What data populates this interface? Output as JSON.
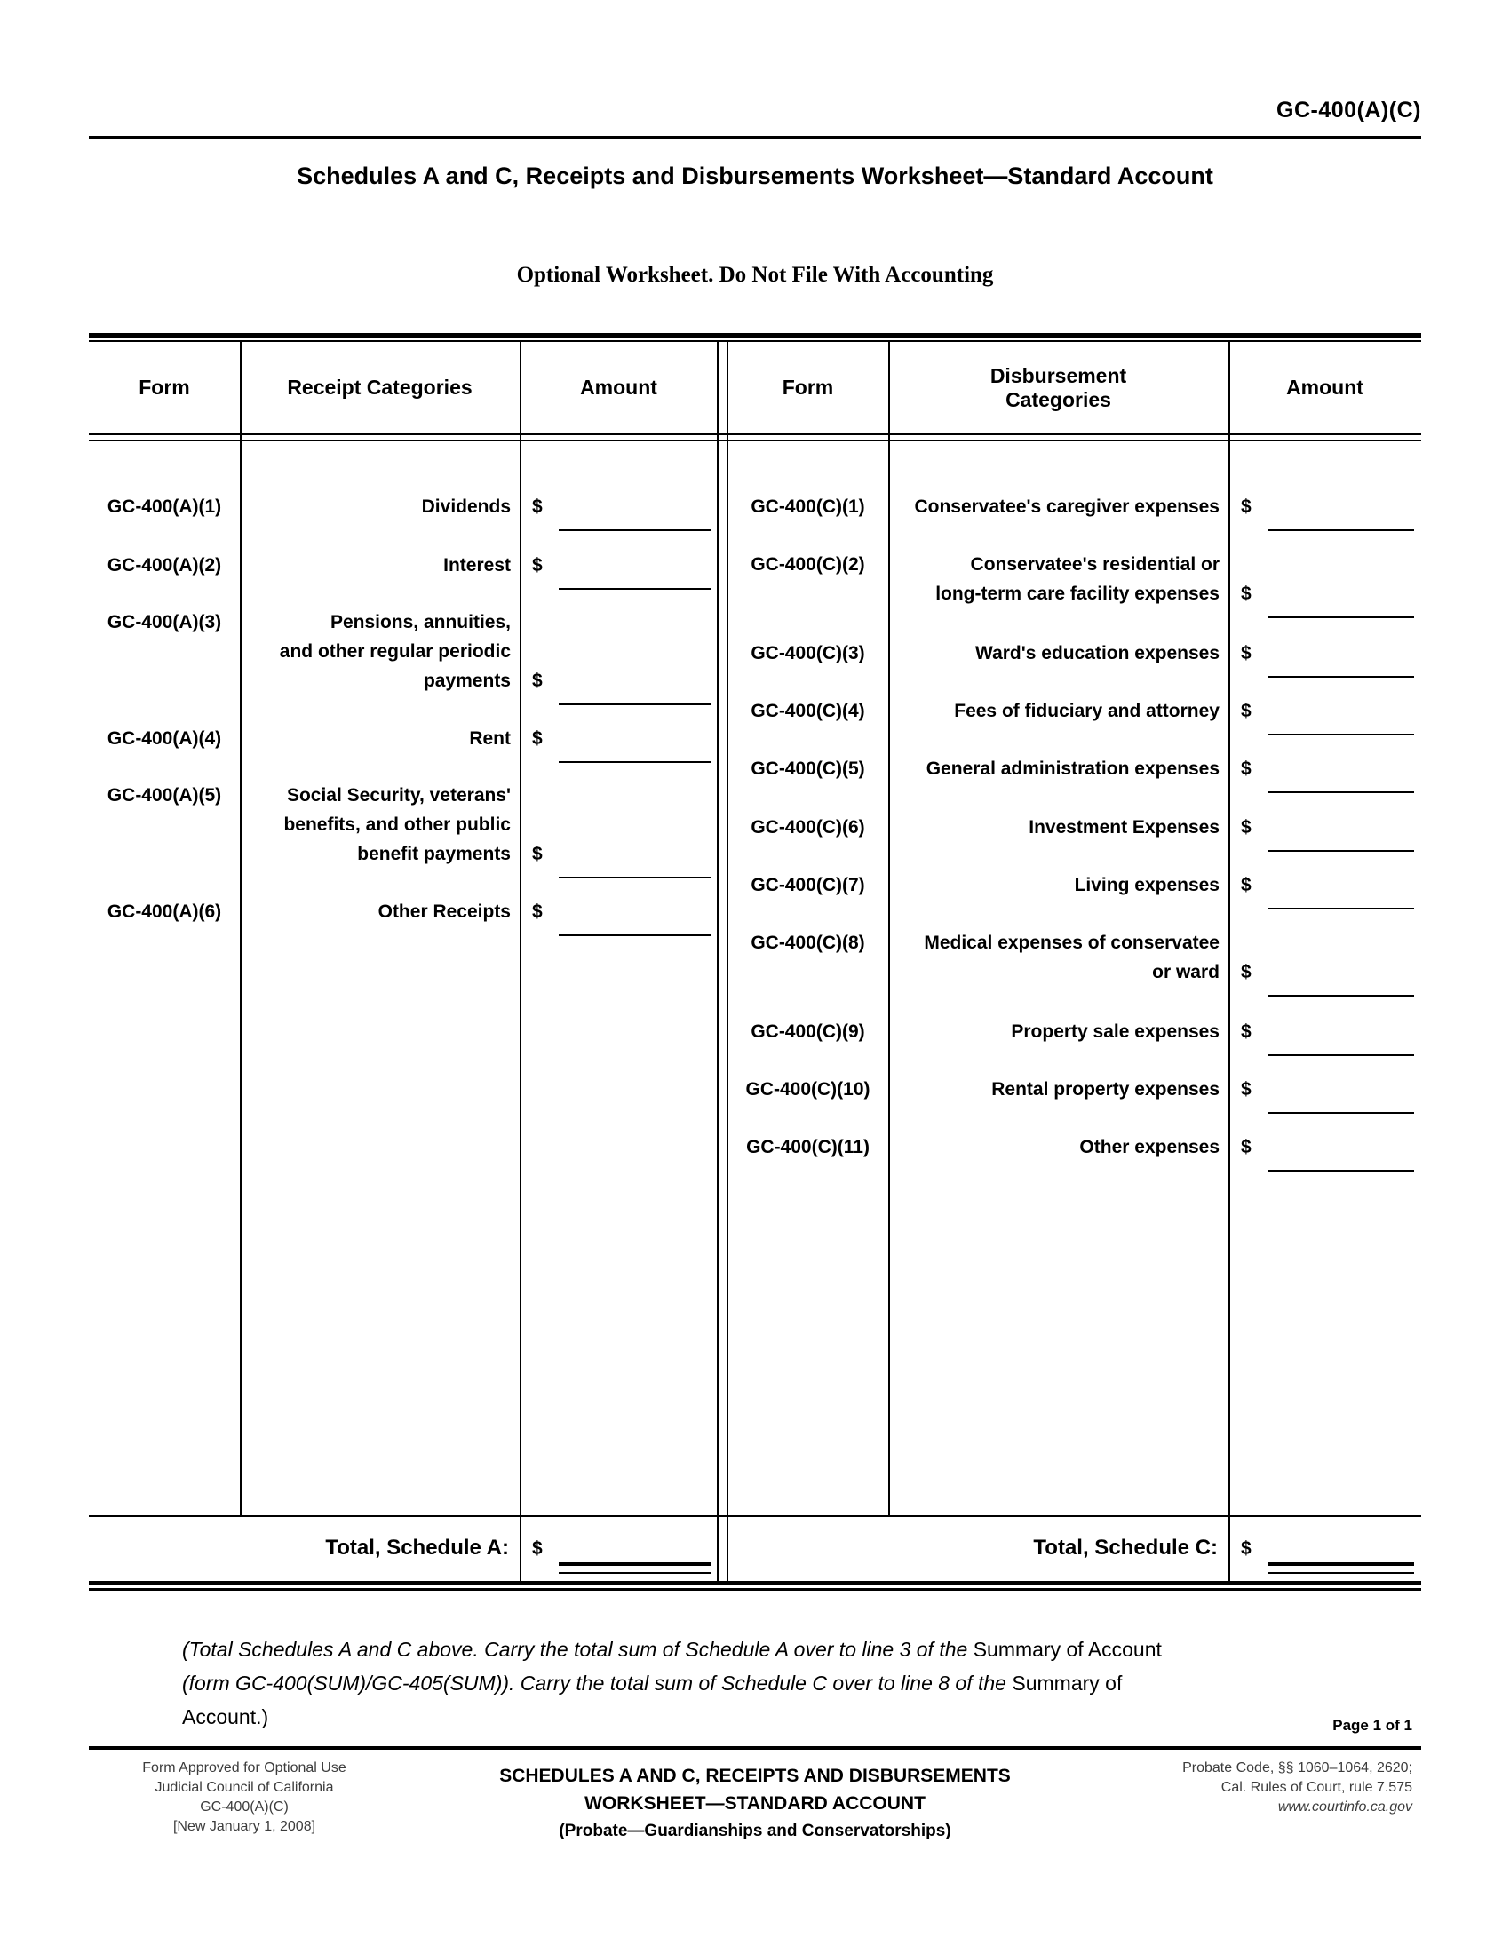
{
  "header": {
    "form_number": "GC-400(A)(C)",
    "title": "Schedules A and C, Receipts and Disbursements Worksheet—Standard Account",
    "subtitle": "Optional Worksheet.  Do Not File With Accounting"
  },
  "table": {
    "currency_symbol": "$",
    "left": {
      "headers": [
        "Form",
        "Receipt Categories",
        "Amount"
      ],
      "rows": [
        {
          "form": "GC-400(A)(1)",
          "category_lines": [
            "Dividends"
          ]
        },
        {
          "form": "GC-400(A)(2)",
          "category_lines": [
            "Interest"
          ]
        },
        {
          "form": "GC-400(A)(3)",
          "category_lines": [
            "Pensions, annuities,",
            "and other regular periodic",
            "payments"
          ]
        },
        {
          "form": "GC-400(A)(4)",
          "category_lines": [
            "Rent"
          ]
        },
        {
          "form": "GC-400(A)(5)",
          "category_lines": [
            "Social Security, veterans'",
            "benefits, and other public",
            "benefit payments"
          ]
        },
        {
          "form": "GC-400(A)(6)",
          "category_lines": [
            "Other Receipts"
          ]
        }
      ],
      "total_label": "Total, Schedule A:"
    },
    "right": {
      "headers": [
        "Form",
        "Disbursement Categories",
        "Amount"
      ],
      "rows": [
        {
          "form": "GC-400(C)(1)",
          "category_lines": [
            "Conservatee's caregiver expenses"
          ]
        },
        {
          "form": "GC-400(C)(2)",
          "category_lines": [
            "Conservatee's residential or",
            "long-term care facility expenses"
          ]
        },
        {
          "form": "GC-400(C)(3)",
          "category_lines": [
            "Ward's education expenses"
          ]
        },
        {
          "form": "GC-400(C)(4)",
          "category_lines": [
            "Fees of fiduciary and attorney"
          ]
        },
        {
          "form": "GC-400(C)(5)",
          "category_lines": [
            "General administration expenses"
          ]
        },
        {
          "form": "GC-400(C)(6)",
          "category_lines": [
            "Investment Expenses"
          ]
        },
        {
          "form": "GC-400(C)(7)",
          "category_lines": [
            "Living expenses"
          ]
        },
        {
          "form": "GC-400(C)(8)",
          "category_lines": [
            "Medical expenses of conservatee",
            "or ward"
          ]
        },
        {
          "form": "GC-400(C)(9)",
          "category_lines": [
            "Property sale expenses"
          ]
        },
        {
          "form": "GC-400(C)(10)",
          "category_lines": [
            "Rental property expenses"
          ]
        },
        {
          "form": "GC-400(C)(11)",
          "category_lines": [
            "Other expenses"
          ]
        }
      ],
      "total_label": "Total, Schedule C:"
    }
  },
  "note_segments": [
    {
      "text": "(Total Schedules A and C above. Carry the total sum of Schedule A over to line 3 of the ",
      "italic": true
    },
    {
      "text": "Summary of Account ",
      "italic": false
    },
    {
      "text": "(form GC-400(SUM)/GC-405(SUM)).  Carry the total sum of Schedule C over to line 8 of the ",
      "italic": true
    },
    {
      "text": "Summary of Account.)",
      "italic": false
    }
  ],
  "page_label": "Page 1 of 1",
  "footer": {
    "left_lines": [
      "Form Approved for Optional Use",
      "Judicial Council of California",
      "GC-400(A)(C)",
      "[New January 1, 2008]"
    ],
    "center_title_lines": [
      "SCHEDULES A AND C, RECEIPTS AND DISBURSEMENTS",
      "WORKSHEET—STANDARD ACCOUNT"
    ],
    "center_subtitle": "(Probate—Guardianships and Conservatorships)",
    "right_lines": [
      "Probate Code, §§ 1060–1064, 2620;",
      "Cal. Rules of Court, rule 7.575"
    ],
    "right_link": "www.courtinfo.ca.gov"
  }
}
